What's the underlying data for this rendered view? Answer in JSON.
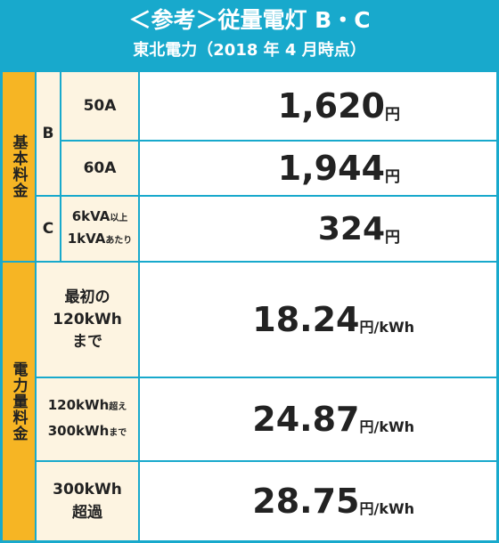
{
  "header": {
    "title": "＜参考＞従量電灯 B・C",
    "subtitle": "東北電力（2018 年 4 月時点）"
  },
  "basic": {
    "category": "基本料金",
    "b_label": "B",
    "c_label": "C",
    "rows": [
      {
        "label": "50A",
        "value": "1,620",
        "unit": "円"
      },
      {
        "label": "60A",
        "value": "1,944",
        "unit": "円"
      },
      {
        "label_line1": "6kVA",
        "label_line1_small": "以上",
        "label_line2": "1kVA",
        "label_line2_small": "あたり",
        "value": "324",
        "unit": "円"
      }
    ]
  },
  "usage": {
    "category": "電力量料金",
    "rows": [
      {
        "line1": "最初の",
        "line2": "120kWh",
        "line3": "まで",
        "value": "18.24",
        "unit": "円/kWh"
      },
      {
        "line1": "120kWh",
        "line1_small": "超え",
        "line2": "300kWh",
        "line2_small": "まで",
        "value": "24.87",
        "unit": "円/kWh"
      },
      {
        "line1": "300kWh",
        "line2": "超過",
        "value": "28.75",
        "unit": "円/kWh"
      }
    ]
  }
}
